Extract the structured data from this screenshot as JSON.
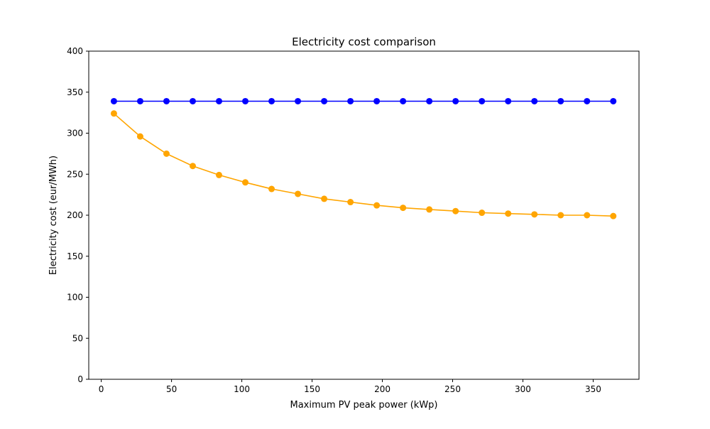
{
  "chart_data": {
    "type": "line",
    "title": "Electricity cost comparison",
    "xlabel": "Maximum PV peak power (kWp)",
    "ylabel": "Electricity cost (eur/MWh)",
    "xlim": [
      -8.9,
      382.6
    ],
    "ylim": [
      0,
      400
    ],
    "xticks": [
      0,
      50,
      100,
      150,
      200,
      250,
      300,
      350
    ],
    "yticks": [
      0,
      50,
      100,
      150,
      200,
      250,
      300,
      350,
      400
    ],
    "grid": false,
    "x": [
      9.0,
      27.7,
      46.4,
      65.1,
      83.8,
      102.5,
      121.2,
      139.9,
      158.6,
      177.3,
      196.0,
      214.7,
      233.4,
      252.1,
      270.8,
      289.5,
      308.2,
      326.9,
      345.6,
      364.3
    ],
    "series": [
      {
        "color": "#0000ff",
        "values": [
          339,
          339,
          339,
          339,
          339,
          339,
          339,
          339,
          339,
          339,
          339,
          339,
          339,
          339,
          339,
          339,
          339,
          339,
          339,
          339
        ]
      },
      {
        "color": "#ffa500",
        "values": [
          324,
          296,
          275,
          260,
          249,
          240,
          232,
          226,
          220,
          216,
          212,
          209,
          207,
          205,
          203,
          202,
          201,
          200,
          200,
          199
        ]
      }
    ]
  }
}
